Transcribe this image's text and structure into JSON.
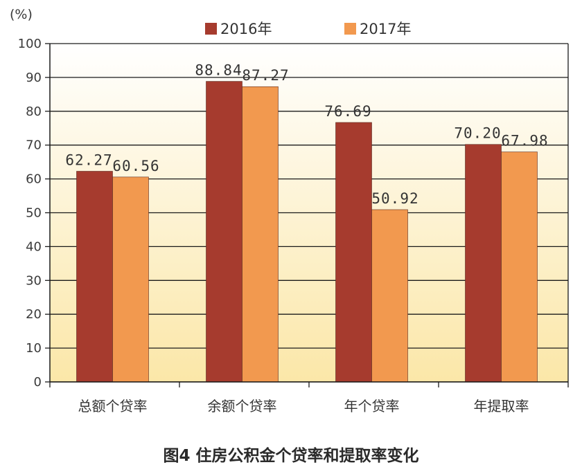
{
  "chart_data": {
    "type": "bar",
    "unit_label": "(%)",
    "categories": [
      "总额个贷率",
      "余额个贷率",
      "年个贷率",
      "年提取率"
    ],
    "series": [
      {
        "name": "2016年",
        "color": "#a63b2e",
        "values": [
          62.27,
          88.84,
          76.69,
          70.2
        ],
        "labels": [
          "62.27",
          "88.84",
          "76.69",
          "70.20"
        ]
      },
      {
        "name": "2017年",
        "color": "#f2994f",
        "values": [
          60.56,
          87.27,
          50.92,
          67.98
        ],
        "labels": [
          "60.56",
          "87.27",
          "50.92",
          "67.98"
        ]
      }
    ],
    "ylim": [
      0,
      100
    ],
    "yticks": [
      0,
      10,
      20,
      30,
      40,
      50,
      60,
      70,
      80,
      90,
      100
    ],
    "grid": true,
    "legend_position": "top",
    "background_gradient": [
      "#ffffff",
      "#fbe7a8"
    ],
    "caption": "图4  住房公积金个贷率和提取率变化"
  }
}
